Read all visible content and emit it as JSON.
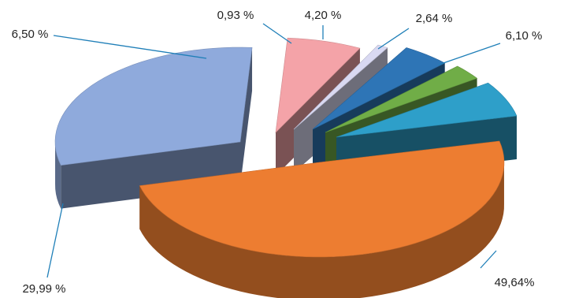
{
  "chart_data": {
    "type": "pie",
    "title": "",
    "style": "3d-exploded",
    "legend": "none",
    "slices": [
      {
        "value": 49.64,
        "label": "49,64%",
        "color": "#ED7D31"
      },
      {
        "value": 29.99,
        "label": "29,99 %",
        "color": "#8FAADC"
      },
      {
        "value": 6.5,
        "label": "6,50 %",
        "color": "#F4A3A8"
      },
      {
        "value": 0.93,
        "label": "0,93 %",
        "color": "#D9D9F2"
      },
      {
        "value": 4.2,
        "label": "4,20 %",
        "color": "#2E75B6"
      },
      {
        "value": 2.64,
        "label": "2,64 %",
        "color": "#70AD47"
      },
      {
        "value": 6.1,
        "label": "6,10 %",
        "color": "#2E9FC9"
      }
    ]
  },
  "colors": {
    "leader_line": "#1F7FB8",
    "label_text": "#222222"
  }
}
